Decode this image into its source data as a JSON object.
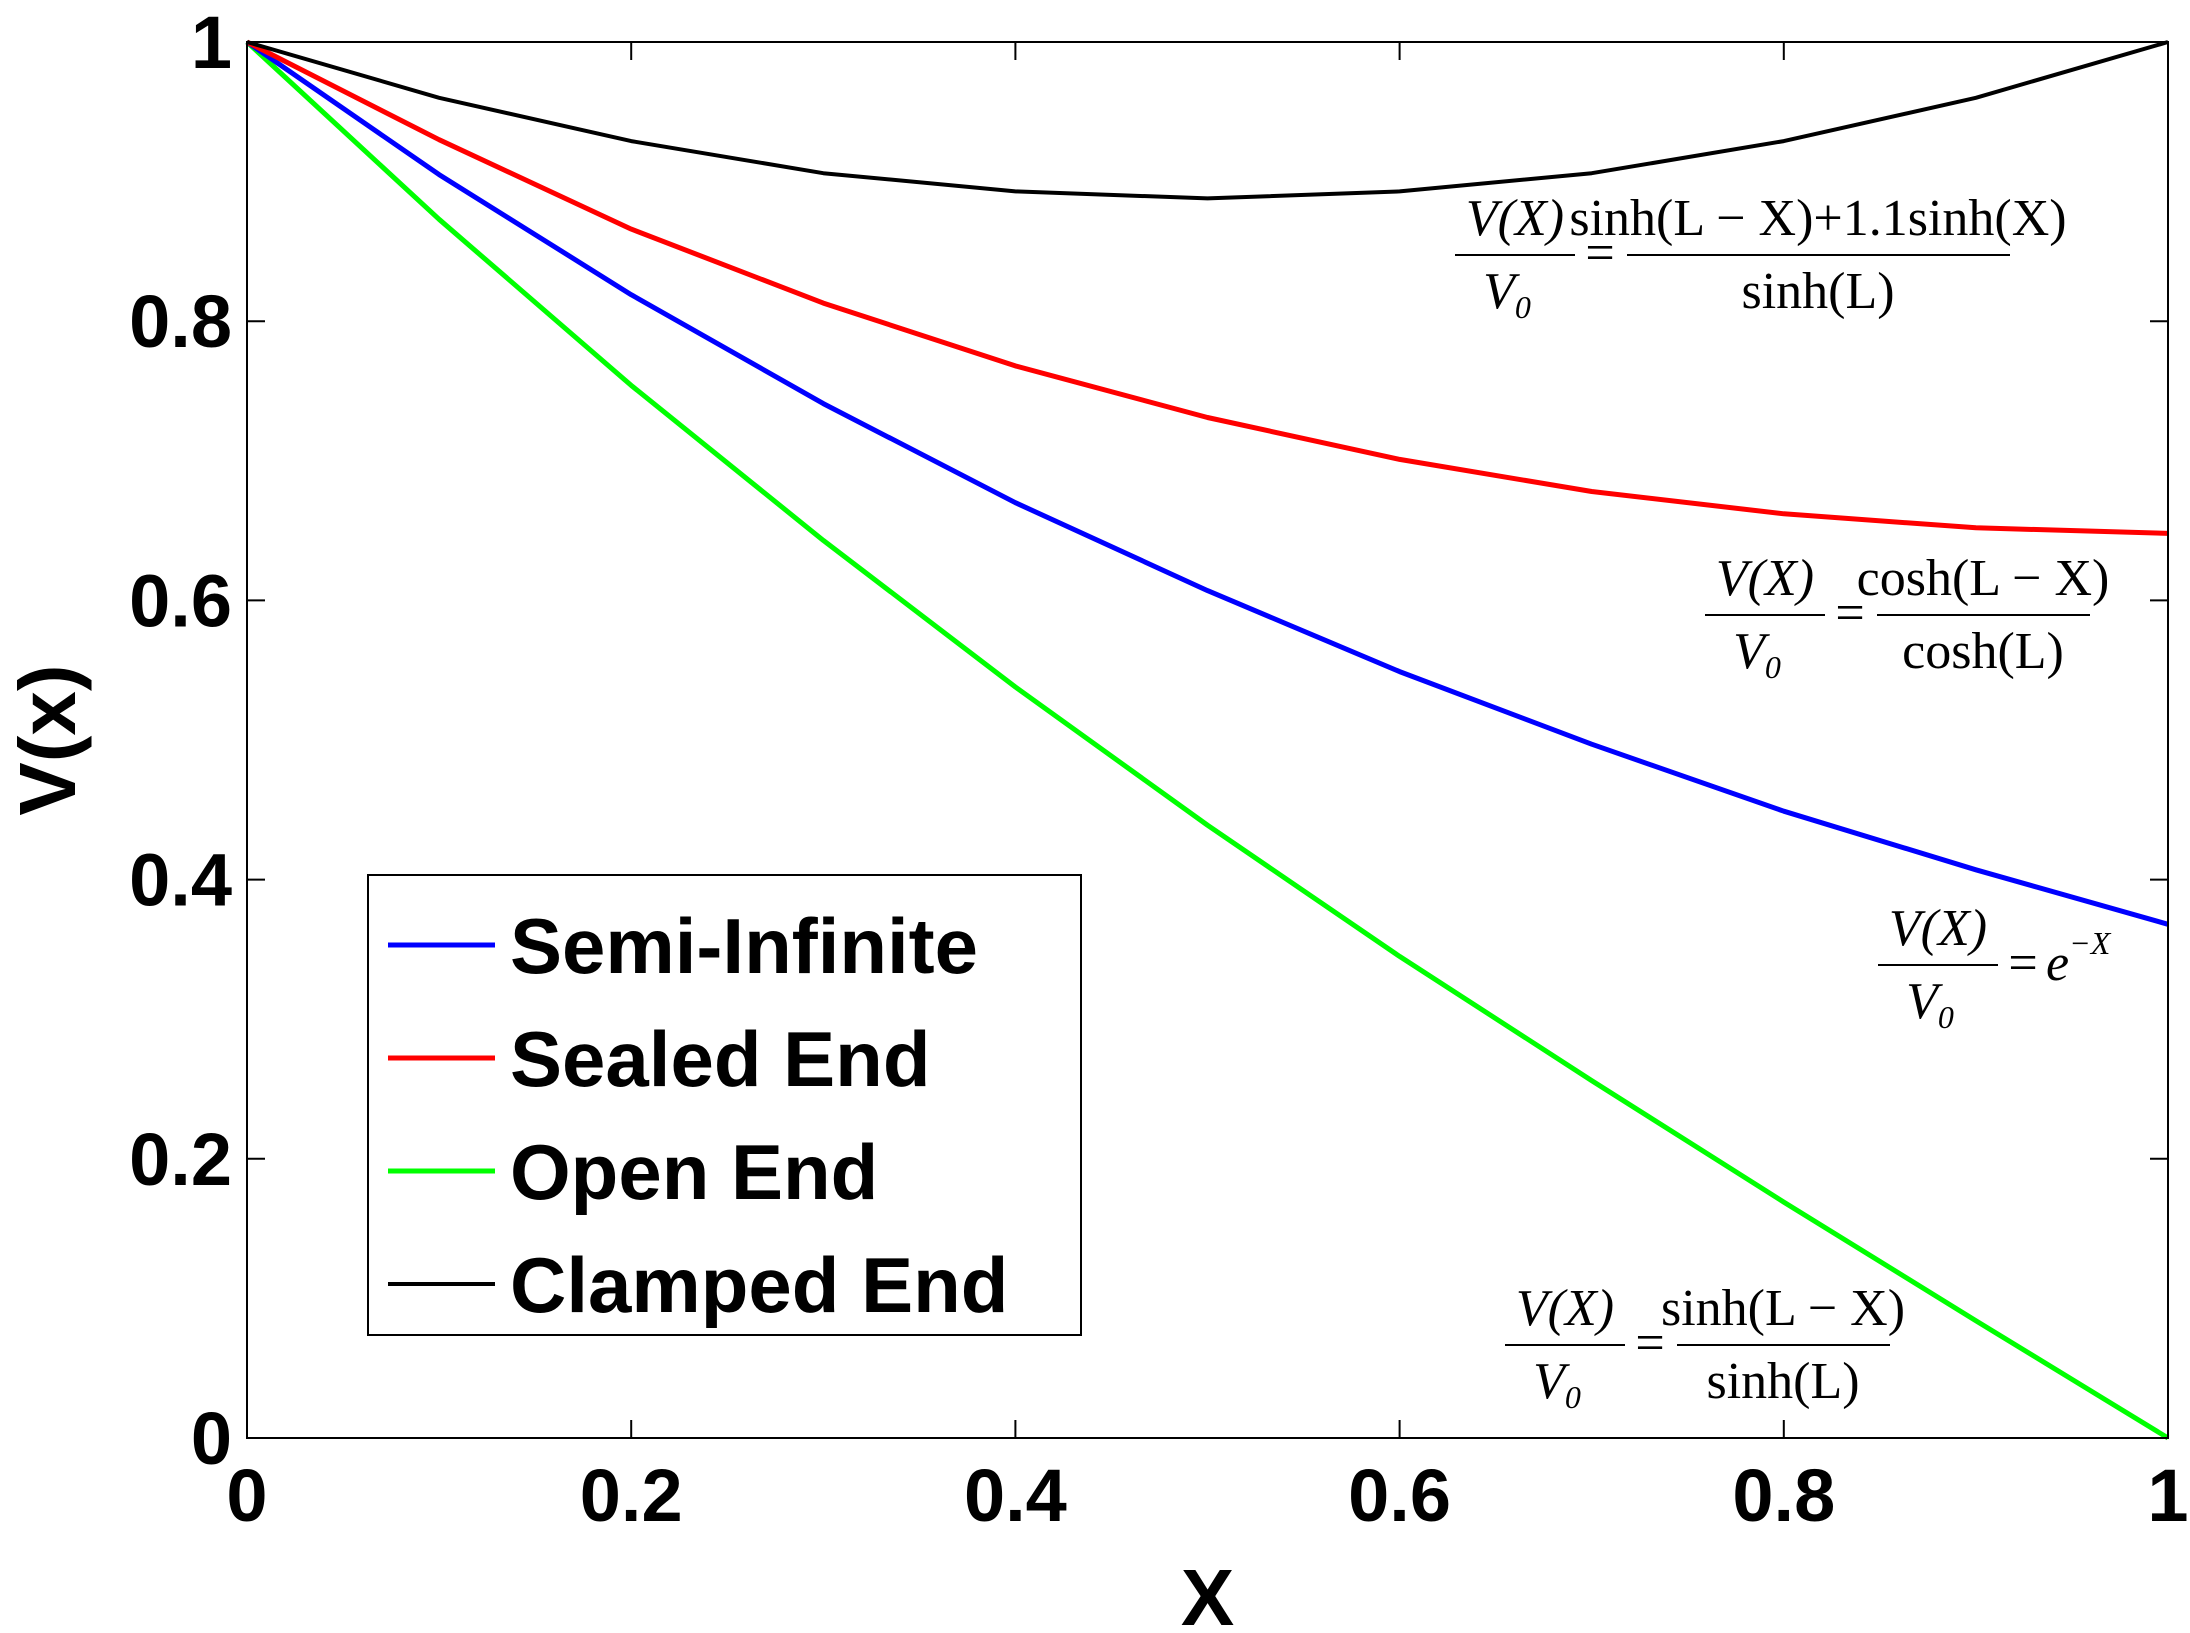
{
  "chart_data": {
    "type": "line",
    "xlabel": "X",
    "ylabel": "V(x)",
    "xlim": [
      0,
      1
    ],
    "ylim": [
      0,
      1
    ],
    "xticks": [
      "0",
      "0.2",
      "0.4",
      "0.6",
      "0.8",
      "1"
    ],
    "yticks": [
      "0",
      "0.2",
      "0.4",
      "0.6",
      "0.8",
      "1"
    ],
    "grid": false,
    "legend_position": "bottom-left",
    "x": [
      0,
      0.1,
      0.2,
      0.3,
      0.4,
      0.5,
      0.6,
      0.7,
      0.8,
      0.9,
      1.0
    ],
    "series": [
      {
        "name": "Semi-Infinite",
        "color": "#0000ff",
        "values": [
          1.0,
          0.905,
          0.819,
          0.741,
          0.67,
          0.607,
          0.549,
          0.497,
          0.449,
          0.407,
          0.368
        ]
      },
      {
        "name": "Sealed End",
        "color": "#ff0000",
        "values": [
          1.0,
          0.93,
          0.866,
          0.813,
          0.768,
          0.731,
          0.701,
          0.678,
          0.662,
          0.652,
          0.648
        ]
      },
      {
        "name": "Open End",
        "color": "#00ff00",
        "values": [
          1.0,
          0.873,
          0.754,
          0.643,
          0.538,
          0.439,
          0.345,
          0.256,
          0.169,
          0.084,
          0.0
        ]
      },
      {
        "name": "Clamped End",
        "color": "#000000",
        "values": [
          1.0,
          0.96,
          0.929,
          0.906,
          0.893,
          0.888,
          0.893,
          0.906,
          0.929,
          0.96,
          1.0
        ]
      }
    ],
    "annotations": [
      {
        "lhs_num": "V(X)",
        "lhs_den": "V",
        "lhs_den_sub": "0",
        "rhs_num": "sinh(L − X)+1.1sinh(X)",
        "rhs_den": "sinh(L)"
      },
      {
        "lhs_num": "V(X)",
        "lhs_den": "V",
        "lhs_den_sub": "0",
        "rhs_num": "cosh(L − X)",
        "rhs_den": "cosh(L)"
      },
      {
        "lhs_num": "V(X)",
        "lhs_den": "V",
        "lhs_den_sub": "0",
        "rhs_base": "e",
        "rhs_sup": "−X"
      },
      {
        "lhs_num": "V(X)",
        "lhs_den": "V",
        "lhs_den_sub": "0",
        "rhs_num": "sinh(L − X)",
        "rhs_den": "sinh(L)"
      }
    ]
  }
}
